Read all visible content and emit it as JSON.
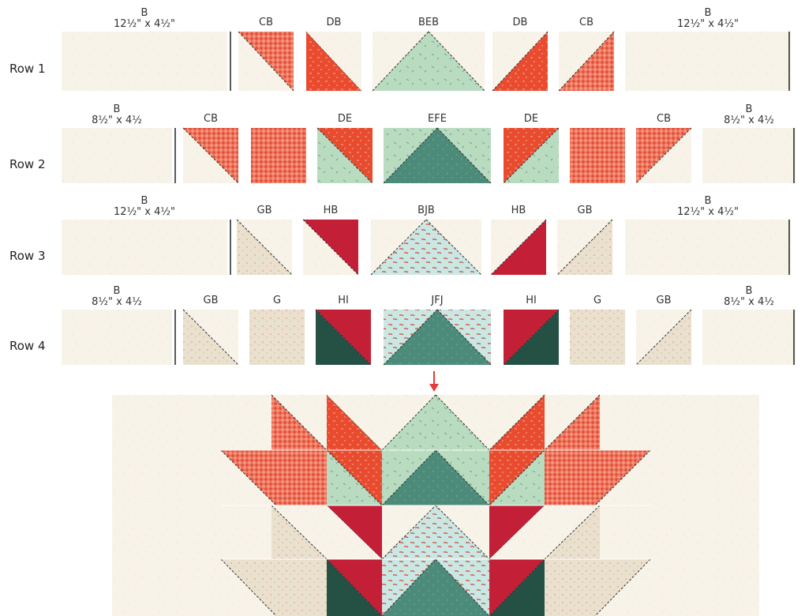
{
  "row_labels": [
    "Row 1",
    "Row 2",
    "Row 3",
    "Row 4"
  ],
  "rows": [
    {
      "name": "Row 1",
      "blocks": [
        {
          "name": "B",
          "size": "12½\" x 4½\"",
          "kind": "B"
        },
        {
          "name": "CB",
          "kind": "CB"
        },
        {
          "name": "DB",
          "kind": "DB"
        },
        {
          "name": "BEB",
          "kind": "BEB"
        },
        {
          "name": "DB",
          "kind": "DB2"
        },
        {
          "name": "CB",
          "kind": "CB2"
        },
        {
          "name": "B",
          "size": "12½\" x 4½\"",
          "kind": "B"
        }
      ]
    },
    {
      "name": "Row 2",
      "blocks": [
        {
          "name": "B",
          "size": "8½\" x 4½",
          "kind": "B"
        },
        {
          "name": "CB",
          "kind": "CB_R2"
        },
        {
          "name": "",
          "kind": "C"
        },
        {
          "name": "DE",
          "kind": "DE"
        },
        {
          "name": "EFE",
          "kind": "EFE"
        },
        {
          "name": "DE",
          "kind": "DE2"
        },
        {
          "name": "",
          "kind": "C"
        },
        {
          "name": "CB",
          "kind": "CB_R2b"
        },
        {
          "name": "B",
          "size": "8½\" x 4½",
          "kind": "B"
        }
      ]
    },
    {
      "name": "Row 3",
      "blocks": [
        {
          "name": "B",
          "size": "12½\" x 4½\"",
          "kind": "B"
        },
        {
          "name": "GB",
          "kind": "GB"
        },
        {
          "name": "HB",
          "kind": "HB"
        },
        {
          "name": "BJB",
          "kind": "BJB"
        },
        {
          "name": "HB",
          "kind": "HB2"
        },
        {
          "name": "GB",
          "kind": "GB2"
        },
        {
          "name": "B",
          "size": "12½\" x 4½\"",
          "kind": "B"
        }
      ]
    },
    {
      "name": "Row 4",
      "blocks": [
        {
          "name": "B",
          "size": "8½\" x 4½",
          "kind": "B"
        },
        {
          "name": "GB",
          "kind": "GB"
        },
        {
          "name": "G",
          "kind": "G"
        },
        {
          "name": "HI",
          "kind": "HI"
        },
        {
          "name": "JFJ",
          "kind": "JFJ"
        },
        {
          "name": "HI",
          "kind": "HI2"
        },
        {
          "name": "G",
          "kind": "G"
        },
        {
          "name": "GB",
          "kind": "GB2"
        },
        {
          "name": "B",
          "size": "8½\" x 4½",
          "kind": "B"
        }
      ]
    }
  ],
  "colors": {
    "background_cream": "#f7f2e7",
    "plaid_red": "#ec5a45",
    "speckled_red": "#e94b2f",
    "sage_green": "#b8d9bf",
    "teal_green": "#4c8b79",
    "crimson": "#c31f37",
    "dark_green": "#255145",
    "tan": "#e7decb",
    "aqua_print": "#c9e6e2",
    "arrow_red": "#e53b3b"
  }
}
